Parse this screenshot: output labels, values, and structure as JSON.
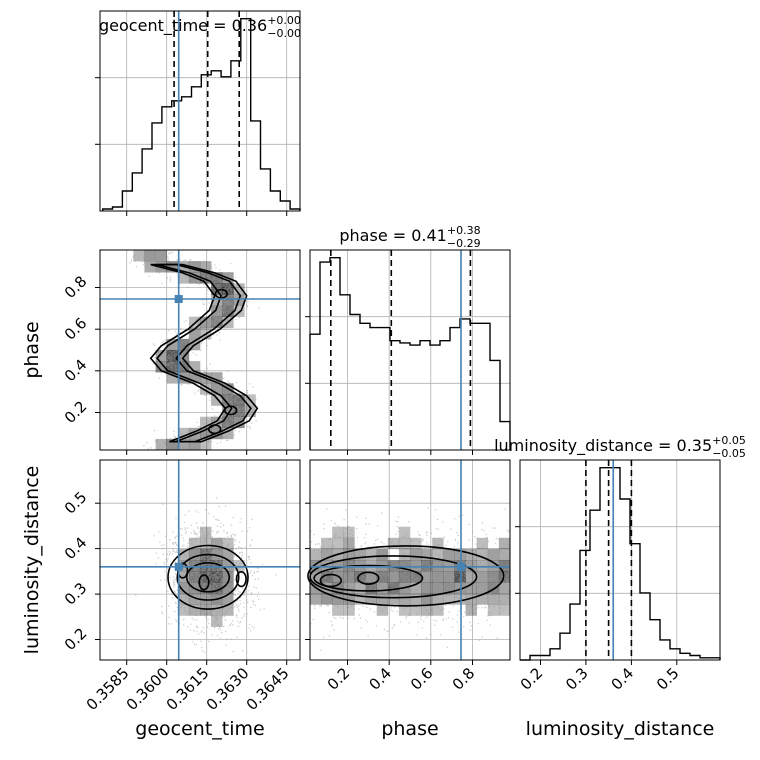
{
  "chart_data": {
    "type": "scatter",
    "subtype": "corner_plot",
    "parameters": [
      "geocent_time",
      "phase",
      "luminosity_distance"
    ],
    "truths": {
      "geocent_time": 0.36045,
      "phase": 0.745,
      "luminosity_distance": 0.36
    },
    "colors": {
      "truth": "#4682b4",
      "hist": "#000000",
      "scatter": "#9a9a9a",
      "grid": "#b0b0b0"
    },
    "grid": true,
    "axes": {
      "geocent_time": {
        "range": [
          0.3575,
          0.365
        ],
        "ticks": [
          0.3585,
          0.36,
          0.3615,
          0.363,
          0.3645
        ],
        "tick_labels": [
          "0.3585",
          "0.3600",
          "0.3615",
          "0.3630",
          "0.3645"
        ],
        "label": "geocent_time"
      },
      "phase": {
        "range": [
          0.02,
          0.98
        ],
        "ticks": [
          0.2,
          0.4,
          0.6,
          0.8
        ],
        "tick_labels": [
          "0.2",
          "0.4",
          "0.6",
          "0.8"
        ],
        "label": "phase"
      },
      "luminosity_distance": {
        "range": [
          0.155,
          0.595
        ],
        "ticks": [
          0.2,
          0.3,
          0.4,
          0.5
        ],
        "tick_labels": [
          "0.2",
          "0.3",
          "0.4",
          "0.5"
        ],
        "label": "luminosity_distance"
      }
    },
    "titles": {
      "geocent_time": {
        "text": "geocent_time = 0.36",
        "plus": "+0.00",
        "minus": "−0.00"
      },
      "phase": {
        "text": "phase = 0.41",
        "plus": "+0.38",
        "minus": "−0.29"
      },
      "luminosity_distance": {
        "text": "luminosity_distance = 0.35",
        "plus": "+0.05",
        "minus": "−0.05"
      }
    },
    "marginals": {
      "geocent_time": {
        "bin_edges": [
          0.3576,
          0.35797,
          0.35834,
          0.35871,
          0.35908,
          0.35945,
          0.35982,
          0.36019,
          0.36056,
          0.36093,
          0.3613,
          0.36167,
          0.36204,
          0.36241,
          0.36278,
          0.36315,
          0.36352,
          0.36389,
          0.36426,
          0.36463,
          0.365
        ],
        "counts": [
          0.01,
          0.02,
          0.1,
          0.19,
          0.31,
          0.44,
          0.52,
          0.55,
          0.57,
          0.62,
          0.68,
          0.7,
          0.67,
          0.75,
          0.96,
          0.45,
          0.21,
          0.1,
          0.05,
          0.01
        ],
        "quantiles": [
          0.36028,
          0.36154,
          0.36272
        ]
      },
      "phase": {
        "bin_edges": [
          0.02,
          0.068,
          0.116,
          0.164,
          0.212,
          0.26,
          0.308,
          0.356,
          0.404,
          0.452,
          0.5,
          0.548,
          0.596,
          0.644,
          0.692,
          0.74,
          0.788,
          0.836,
          0.884,
          0.932,
          0.98
        ],
        "counts": [
          0.53,
          0.86,
          0.88,
          0.71,
          0.62,
          0.58,
          0.56,
          0.56,
          0.5,
          0.49,
          0.48,
          0.5,
          0.48,
          0.5,
          0.56,
          0.6,
          0.58,
          0.58,
          0.41,
          0.13
        ],
        "quantiles": [
          0.12,
          0.41,
          0.79
        ]
      },
      "luminosity_distance": {
        "bin_edges": [
          0.155,
          0.177,
          0.199,
          0.221,
          0.243,
          0.265,
          0.287,
          0.309,
          0.331,
          0.353,
          0.375,
          0.397,
          0.419,
          0.441,
          0.463,
          0.485,
          0.507,
          0.529,
          0.551,
          0.573,
          0.595
        ],
        "counts": [
          0.0,
          0.02,
          0.02,
          0.05,
          0.12,
          0.25,
          0.49,
          0.67,
          0.86,
          0.86,
          0.72,
          0.52,
          0.3,
          0.18,
          0.09,
          0.05,
          0.03,
          0.02,
          0.01,
          0.01
        ],
        "quantiles": [
          0.3,
          0.35,
          0.4
        ]
      }
    },
    "joint": {
      "phase_vs_geocent_time": {
        "ridge": {
          "x": [
            0.359,
            0.36,
            0.3612,
            0.362,
            0.3624,
            0.3622,
            0.3614,
            0.3604,
            0.36,
            0.3604,
            0.3616,
            0.3624,
            0.3628,
            0.3625,
            0.3617,
            0.3607,
            0.3598
          ],
          "y": [
            0.95,
            0.91,
            0.87,
            0.83,
            0.76,
            0.69,
            0.6,
            0.52,
            0.46,
            0.4,
            0.34,
            0.28,
            0.22,
            0.16,
            0.11,
            0.06,
            0.03
          ]
        },
        "peaks": [
          [
            0.36205,
            0.77
          ],
          [
            0.3624,
            0.21
          ],
          [
            0.3618,
            0.12
          ]
        ]
      },
      "luminosity_distance_vs_geocent_time": {
        "center": [
          0.36155,
          0.337
        ],
        "spread": [
          0.00075,
          0.055
        ],
        "peaks": [
          [
            0.3606,
            0.352
          ],
          [
            0.3614,
            0.326
          ],
          [
            0.3628,
            0.333
          ]
        ]
      },
      "luminosity_distance_vs_phase": {
        "center": [
          0.45,
          0.34
        ],
        "spread": [
          0.32,
          0.05
        ],
        "peaks": [
          [
            0.12,
            0.33
          ],
          [
            0.3,
            0.335
          ]
        ]
      }
    }
  }
}
